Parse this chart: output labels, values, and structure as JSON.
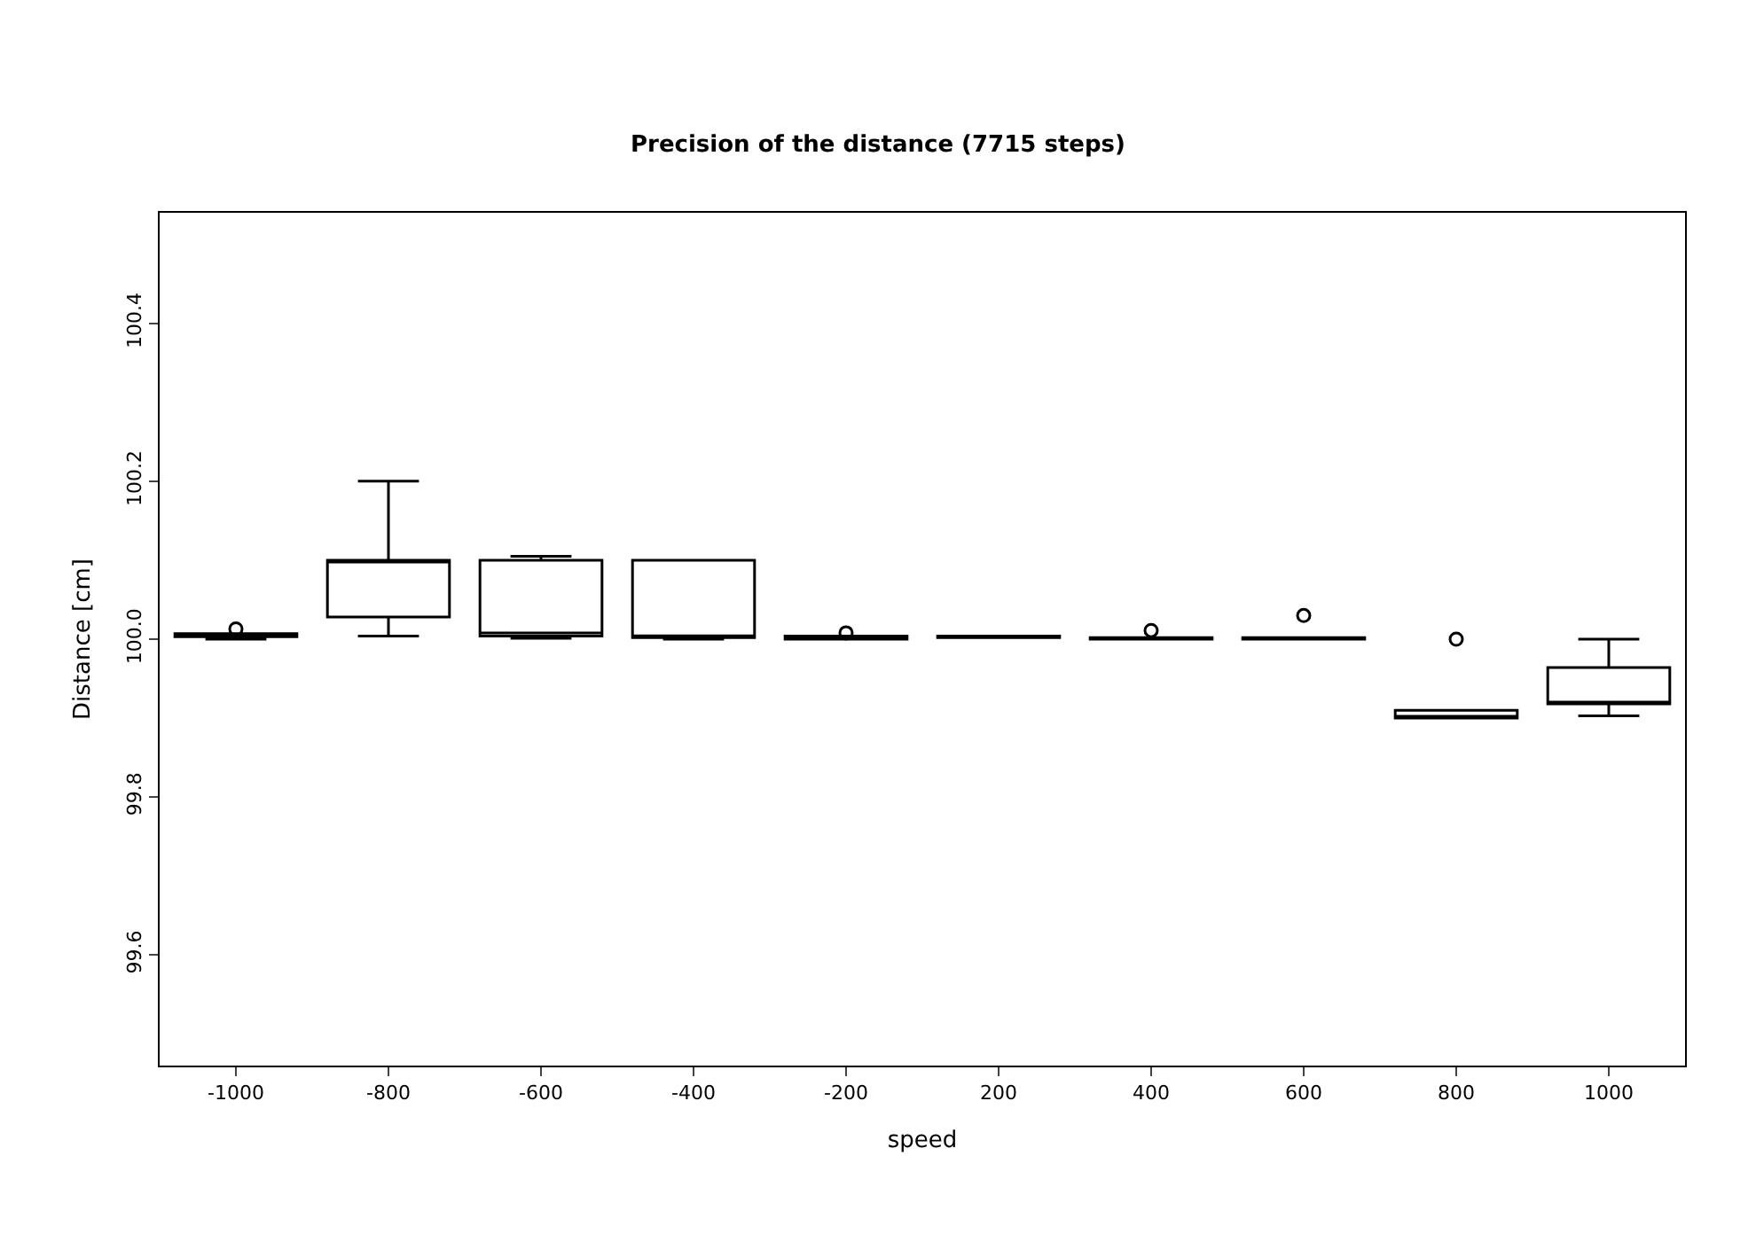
{
  "chart_data": {
    "type": "box",
    "title": "Precision of the distance (7715 steps)",
    "xlabel": "speed",
    "ylabel": "Distance [cm]",
    "categories": [
      "-1000",
      "-800",
      "-600",
      "-400",
      "-200",
      "200",
      "400",
      "600",
      "800",
      "1000"
    ],
    "boxes": [
      {
        "low": 100.0,
        "q1": 100.003,
        "median": 100.005,
        "q3": 100.007,
        "high": 100.007,
        "outliers": [
          100.013
        ]
      },
      {
        "low": 100.004,
        "q1": 100.028,
        "median": 100.099,
        "q3": 100.1,
        "high": 100.2
      },
      {
        "low": 100.001,
        "q1": 100.004,
        "median": 100.008,
        "q3": 100.1,
        "high": 100.105
      },
      {
        "low": 100.0,
        "q1": 100.002,
        "median": 100.004,
        "q3": 100.1,
        "high": 100.1
      },
      {
        "low": 100.0,
        "q1": 100.0,
        "median": 100.003,
        "q3": 100.004,
        "high": 100.004,
        "outliers": [
          100.008
        ]
      },
      {
        "low": 100.002,
        "q1": 100.002,
        "median": 100.003,
        "q3": 100.004,
        "high": 100.004
      },
      {
        "low": 100.0,
        "q1": 100.0,
        "median": 100.001,
        "q3": 100.002,
        "high": 100.002,
        "outliers": [
          100.011
        ]
      },
      {
        "low": 100.0,
        "q1": 100.0,
        "median": 100.001,
        "q3": 100.002,
        "high": 100.002,
        "outliers": [
          100.03
        ]
      },
      {
        "low": 99.9,
        "q1": 99.9,
        "median": 99.9,
        "q3": 99.91,
        "high": 99.91,
        "outliers": [
          100.0
        ]
      },
      {
        "low": 99.903,
        "q1": 99.918,
        "median": 99.92,
        "q3": 99.964,
        "high": 100.0
      }
    ],
    "ylim": [
      99.46,
      100.54
    ],
    "yticks": [
      99.6,
      99.8,
      {
        "value": 100,
        "label": "100.0"
      },
      100.2,
      100.4
    ],
    "marker": "circle",
    "color": "#000000"
  }
}
